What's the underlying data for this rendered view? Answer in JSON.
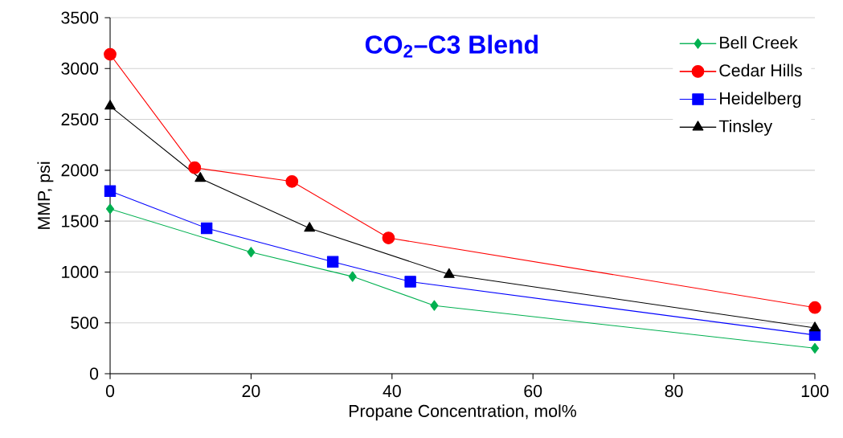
{
  "chart_data": {
    "type": "line",
    "title": "CO$_{2}$–C3 Blend",
    "xlabel": "Propane Concentration, mol%",
    "ylabel": "MMP, psi",
    "xlim": [
      0,
      100
    ],
    "xticks": [
      0,
      20,
      40,
      60,
      80,
      100
    ],
    "ylim": [
      0,
      3500
    ],
    "yticks": [
      0,
      500,
      1000,
      1500,
      2000,
      2500,
      3000,
      3500
    ],
    "grid": "y",
    "legend": "top right",
    "series": [
      {
        "name": "Bell Creek",
        "color": "#00b050",
        "marker": "diamond",
        "x": [
          0,
          20,
          34.4,
          46,
          100
        ],
        "values": [
          1620,
          1195,
          955,
          670,
          250
        ]
      },
      {
        "name": "Cedar Hills",
        "color": "#ff0000",
        "marker": "circle",
        "x": [
          0,
          12,
          25.8,
          39.5,
          100
        ],
        "values": [
          3140,
          2025,
          1890,
          1335,
          650
        ]
      },
      {
        "name": "Heidelberg",
        "color": "#0000ff",
        "marker": "square",
        "x": [
          0,
          13.7,
          31.6,
          42.6,
          100
        ],
        "values": [
          1795,
          1430,
          1100,
          905,
          380
        ]
      },
      {
        "name": "Tinsley",
        "color": "#000000",
        "marker": "triangle",
        "x": [
          0,
          12.8,
          28.3,
          48.1,
          100
        ],
        "values": [
          2630,
          1920,
          1430,
          975,
          450
        ]
      }
    ]
  }
}
